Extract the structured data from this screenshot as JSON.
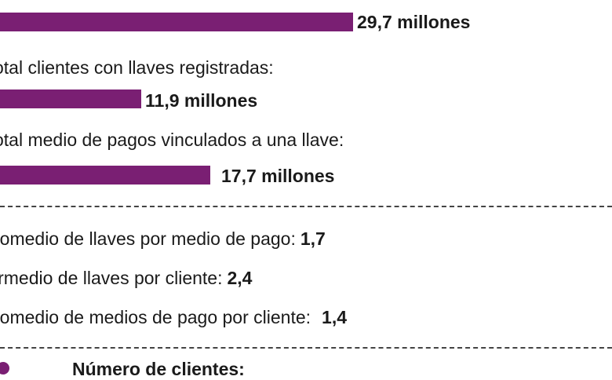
{
  "chart_data": {
    "type": "bar",
    "orientation": "horizontal",
    "accent_color": "#7a1f73",
    "bars": [
      {
        "label": "",
        "value": 29.7,
        "value_label": "29,7 millones"
      },
      {
        "label": "otal clientes con llaves registradas:",
        "value": 11.9,
        "value_label": "11,9 millones"
      },
      {
        "label": "otal medio de pagos vinculados a una llave:",
        "value": 17.7,
        "value_label": "17,7 millones"
      }
    ],
    "unit": "millones"
  },
  "stats": [
    {
      "label": "romedio de llaves por medio de pago:",
      "value": "1,7"
    },
    {
      "label": "irmedio de llaves por cliente:",
      "value": "2,4"
    },
    {
      "label": "romedio de medios de pago por cliente:",
      "value": "1,4"
    }
  ],
  "legend": {
    "title": "Número de clientes:"
  }
}
